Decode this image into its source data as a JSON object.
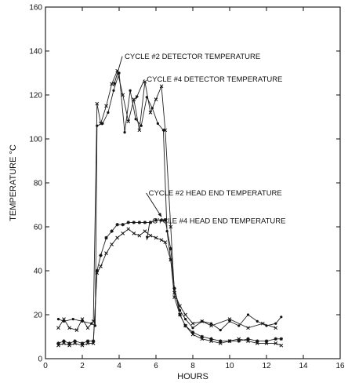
{
  "chart_data": {
    "type": "line",
    "title": "",
    "xlabel": "HOURS",
    "ylabel": "TEMPERATURE °C",
    "xlim": [
      0,
      16
    ],
    "ylim": [
      0,
      160
    ],
    "xticks": [
      0,
      2,
      4,
      6,
      8,
      10,
      12,
      14,
      16
    ],
    "yticks": [
      0,
      20,
      40,
      60,
      80,
      100,
      120,
      140,
      160
    ],
    "grid": false,
    "legend": "none",
    "annotations": [
      {
        "text": "CYCLE #2 DETECTOR TEMPERATURE",
        "x": 4.3,
        "y": 136.5,
        "arrow_to": [
          3.7,
          124
        ]
      },
      {
        "text": "CYCLE #4 DETECTOR TEMPERATURE",
        "x": 5.5,
        "y": 126,
        "arrow_to": [
          4.9,
          118
        ]
      },
      {
        "text": "CYCLE #2 HEAD END TEMPERATURE",
        "x": 5.6,
        "y": 74.3,
        "arrow_to": [
          6.3,
          64.5
        ]
      },
      {
        "text": "CYCLE #4 HEAD END TEMPERATURE",
        "x": 5.8,
        "y": 61.6,
        "arrow_to": [
          5.5,
          54
        ]
      }
    ],
    "series": [
      {
        "name": "CYCLE #2 DETECTOR TEMPERATURE",
        "marker": "x",
        "x": [
          0.7,
          1.0,
          1.3,
          1.7,
          2.0,
          2.3,
          2.6,
          2.8,
          3.0,
          3.3,
          3.6,
          3.9,
          4.2,
          4.5,
          4.8,
          5.1,
          5.4,
          5.7,
          6.0,
          6.3,
          6.5,
          6.8,
          7.0,
          7.3,
          7.6,
          8.0,
          8.5,
          9.0,
          10.0,
          11.0,
          11.8,
          12.5
        ],
        "y": [
          14,
          18,
          14,
          13,
          18,
          14,
          17,
          116,
          107,
          115,
          125,
          131,
          120,
          108,
          118,
          104,
          126,
          112,
          118,
          124,
          104,
          60,
          30,
          24,
          20,
          16,
          17,
          15,
          18,
          14,
          16,
          14
        ]
      },
      {
        "name": "CYCLE #4 DETECTOR TEMPERATURE",
        "marker": "dot",
        "x": [
          0.7,
          1.0,
          1.5,
          2.0,
          2.5,
          2.7,
          2.8,
          3.1,
          3.4,
          3.7,
          4.0,
          4.3,
          4.6,
          4.9,
          5.2,
          5.5,
          5.8,
          6.1,
          6.4,
          6.6,
          6.8,
          7.0,
          7.3,
          7.6,
          8.0,
          8.5,
          9.0,
          9.5,
          10.0,
          10.5,
          11.0,
          11.5,
          12.0,
          12.5,
          12.8
        ],
        "y": [
          18,
          17,
          18,
          17,
          16,
          15,
          106,
          107,
          112,
          122,
          130,
          103,
          122,
          109,
          106,
          119,
          114,
          107,
          104,
          58,
          45,
          32,
          22,
          18,
          14,
          17,
          16,
          13,
          17,
          15,
          20,
          17,
          15,
          16,
          19
        ]
      },
      {
        "name": "CYCLE #2 HEAD END TEMPERATURE",
        "marker": "star",
        "x": [
          0.7,
          1.0,
          1.3,
          1.6,
          2.0,
          2.3,
          2.6,
          2.8,
          3.0,
          3.3,
          3.6,
          3.9,
          4.2,
          4.5,
          4.8,
          5.1,
          5.4,
          5.7,
          6.0,
          6.3,
          6.5,
          6.8,
          7.0,
          7.3,
          7.6,
          8.0,
          8.5,
          9.0,
          9.5,
          10.0,
          10.5,
          11.0,
          11.5,
          12.0,
          12.5,
          12.8
        ],
        "y": [
          7,
          8,
          7,
          8,
          7,
          8,
          8,
          40,
          47,
          55,
          58,
          61,
          61,
          62,
          62,
          62,
          62,
          62,
          63,
          63,
          63,
          50,
          32,
          20,
          15,
          12,
          10,
          9,
          8,
          8,
          8,
          9,
          8,
          8,
          9,
          9
        ]
      },
      {
        "name": "CYCLE #4 HEAD END TEMPERATURE",
        "marker": "x",
        "x": [
          0.7,
          1.0,
          1.3,
          1.6,
          2.0,
          2.3,
          2.6,
          2.8,
          3.0,
          3.3,
          3.6,
          3.9,
          4.2,
          4.5,
          4.8,
          5.1,
          5.4,
          5.7,
          6.0,
          6.3,
          6.5,
          6.8,
          7.0,
          7.3,
          7.6,
          8.0,
          8.5,
          9.0,
          9.5,
          10.0,
          10.5,
          11.0,
          11.5,
          12.0,
          12.5,
          12.8
        ],
        "y": [
          6,
          7,
          6,
          7,
          6,
          7,
          7,
          39,
          42,
          48,
          52,
          55,
          57,
          59,
          57,
          56,
          58,
          56,
          55,
          54,
          53,
          45,
          28,
          20,
          15,
          11,
          9,
          8,
          7,
          8,
          9,
          8,
          7,
          7,
          7,
          6
        ]
      }
    ]
  }
}
